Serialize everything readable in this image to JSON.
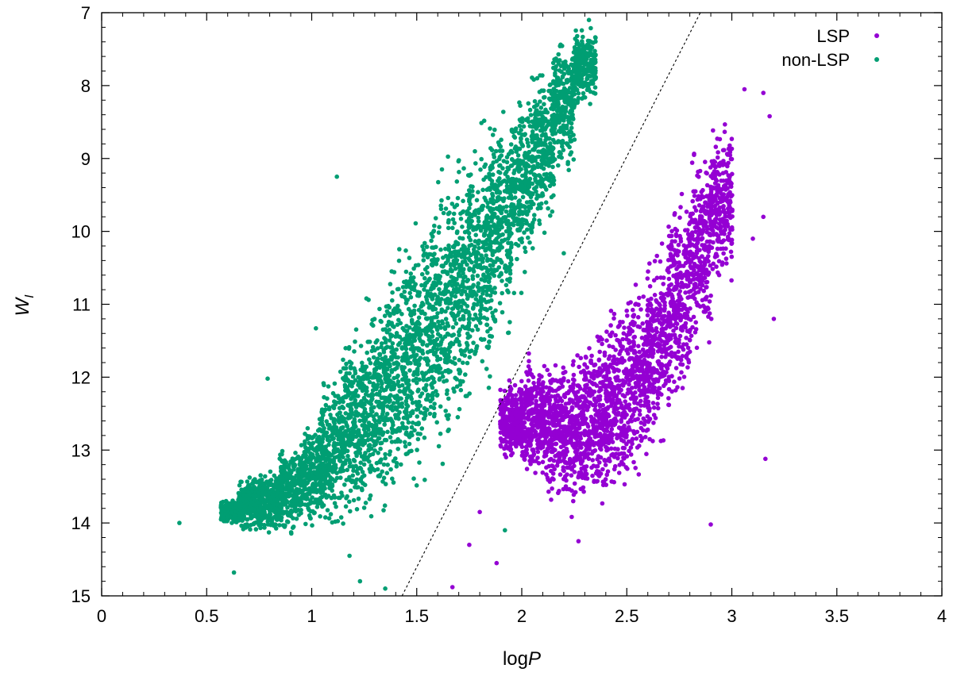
{
  "chart_data": {
    "type": "scatter",
    "title": "",
    "xlabel_main": "log",
    "xlabel_var": "P",
    "ylabel_main": "W",
    "ylabel_sub": "I",
    "xlim": [
      0,
      4
    ],
    "ylim": [
      15,
      7
    ],
    "y_inverted": true,
    "x_ticks": [
      "0",
      "0.5",
      "1",
      "1.5",
      "2",
      "2.5",
      "3",
      "3.5",
      "4"
    ],
    "y_ticks": [
      "7",
      "8",
      "9",
      "10",
      "11",
      "12",
      "13",
      "14",
      "15"
    ],
    "grid": false,
    "legend_position": "top-right",
    "colors": {
      "LSP": "#9400d3",
      "non-LSP": "#009e73"
    },
    "divider_line": {
      "style": "dotted",
      "points": [
        [
          1.43,
          15.0
        ],
        [
          2.85,
          7.0
        ]
      ]
    },
    "series": [
      {
        "name": "non-LSP",
        "color": "#009e73",
        "density_envelope": {
          "x_step": 0.05,
          "x": [
            0.62,
            0.7,
            0.8,
            0.9,
            1.0,
            1.1,
            1.2,
            1.3,
            1.4,
            1.5,
            1.6,
            1.7,
            1.8,
            1.9,
            2.0,
            2.1,
            2.2,
            2.3
          ],
          "y_low": [
            14.0,
            14.1,
            14.1,
            14.1,
            14.1,
            14.0,
            13.95,
            13.8,
            13.6,
            13.4,
            13.05,
            12.6,
            12.0,
            11.4,
            10.6,
            10.0,
            9.2,
            8.2
          ],
          "y_high": [
            13.7,
            13.4,
            13.25,
            12.95,
            12.55,
            12.0,
            11.45,
            10.9,
            10.35,
            9.9,
            9.45,
            9.05,
            8.75,
            8.4,
            8.1,
            7.8,
            7.45,
            7.2
          ]
        },
        "outliers": [
          {
            "x": 0.37,
            "y": 14.0
          },
          {
            "x": 0.63,
            "y": 14.68
          },
          {
            "x": 0.79,
            "y": 12.02
          },
          {
            "x": 1.02,
            "y": 11.33
          },
          {
            "x": 1.12,
            "y": 9.25
          },
          {
            "x": 1.18,
            "y": 14.45
          },
          {
            "x": 1.23,
            "y": 14.8
          },
          {
            "x": 1.35,
            "y": 14.9
          },
          {
            "x": 1.6,
            "y": 10.9
          },
          {
            "x": 1.62,
            "y": 9.15
          },
          {
            "x": 1.92,
            "y": 14.1
          },
          {
            "x": 2.0,
            "y": 10.1
          },
          {
            "x": 2.2,
            "y": 10.3
          },
          {
            "x": 2.32,
            "y": 7.1
          }
        ]
      },
      {
        "name": "LSP",
        "color": "#9400d3",
        "density_envelope": {
          "x_step": 0.05,
          "x": [
            1.95,
            2.05,
            2.15,
            2.25,
            2.35,
            2.45,
            2.55,
            2.65,
            2.75,
            2.85,
            2.95
          ],
          "y_low": [
            13.1,
            13.4,
            13.6,
            13.8,
            13.7,
            13.6,
            13.3,
            12.9,
            12.3,
            11.5,
            10.7
          ],
          "y_high": [
            12.1,
            11.8,
            11.8,
            11.7,
            11.4,
            11.1,
            10.7,
            10.3,
            9.6,
            8.9,
            8.6
          ]
        },
        "outliers": [
          {
            "x": 1.67,
            "y": 14.88
          },
          {
            "x": 1.75,
            "y": 14.3
          },
          {
            "x": 1.8,
            "y": 13.85
          },
          {
            "x": 1.88,
            "y": 14.55
          },
          {
            "x": 2.27,
            "y": 14.25
          },
          {
            "x": 2.9,
            "y": 14.02
          },
          {
            "x": 3.16,
            "y": 13.12
          },
          {
            "x": 3.2,
            "y": 11.2
          },
          {
            "x": 3.15,
            "y": 8.1
          },
          {
            "x": 3.06,
            "y": 8.05
          },
          {
            "x": 3.18,
            "y": 8.42
          },
          {
            "x": 2.82,
            "y": 8.95
          },
          {
            "x": 3.1,
            "y": 10.1
          },
          {
            "x": 3.15,
            "y": 9.8
          }
        ]
      }
    ]
  }
}
